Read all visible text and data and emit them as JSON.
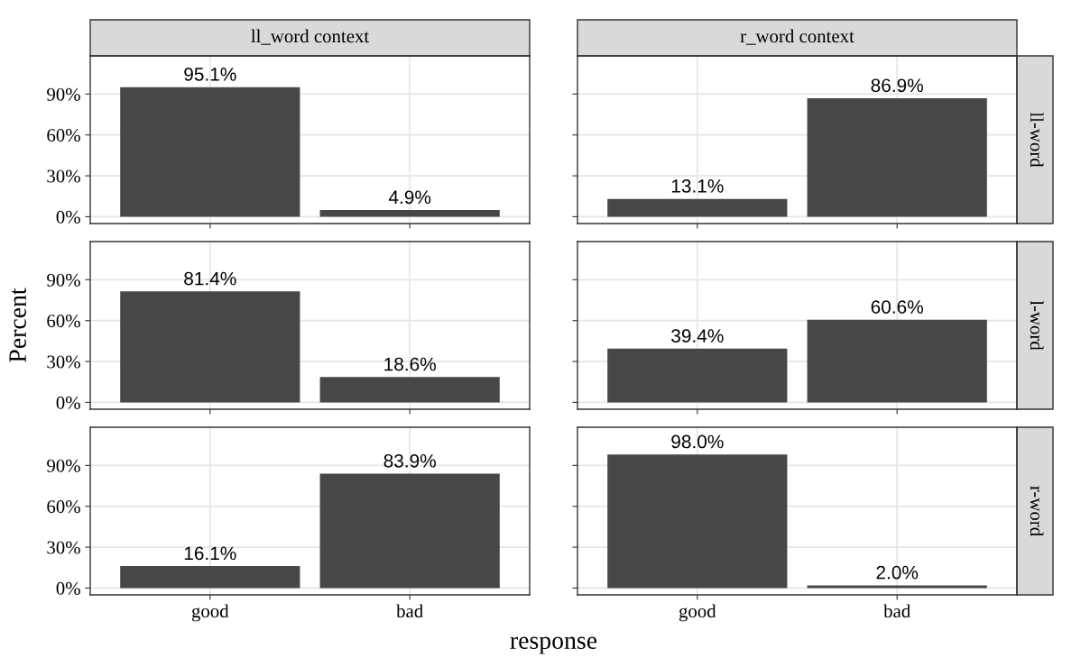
{
  "chart_data": [
    {
      "type": "bar",
      "title": "ll_word context",
      "categories": [
        null,
        null
      ],
      "values": [
        95.1,
        4.9
      ],
      "value_labels": [
        "95.1%",
        "4.9%"
      ],
      "color": "#474747",
      "ylim": [
        -5,
        118
      ],
      "yticks": [
        {
          "value": 0,
          "label": "0%"
        },
        {
          "value": 30,
          "label": "30%"
        },
        {
          "value": 60,
          "label": "60%"
        },
        {
          "value": 90,
          "label": "90%"
        }
      ],
      "grid": true
    },
    {
      "type": "bar",
      "title": "r_word context",
      "annotations": [
        "ll-word"
      ],
      "categories": [
        null,
        null
      ],
      "values": [
        13.1,
        86.9
      ],
      "value_labels": [
        "13.1%",
        "86.9%"
      ],
      "color": "#474747",
      "ylim": [
        -5,
        118
      ],
      "yticks": [
        {
          "value": 0,
          "label": null
        },
        {
          "value": 30,
          "label": null
        },
        {
          "value": 60,
          "label": null
        },
        {
          "value": 90,
          "label": null
        }
      ],
      "grid": true
    },
    {
      "type": "bar",
      "ylabel": "Percent",
      "categories": [
        null,
        null
      ],
      "values": [
        81.4,
        18.6
      ],
      "value_labels": [
        "81.4%",
        "18.6%"
      ],
      "color": "#474747",
      "ylim": [
        -5,
        118
      ],
      "yticks": [
        {
          "value": 0,
          "label": "0%"
        },
        {
          "value": 30,
          "label": "30%"
        },
        {
          "value": 60,
          "label": "60%"
        },
        {
          "value": 90,
          "label": "90%"
        }
      ],
      "grid": true
    },
    {
      "type": "bar",
      "annotations": [
        "l-word"
      ],
      "categories": [
        null,
        null
      ],
      "values": [
        39.4,
        60.6
      ],
      "value_labels": [
        "39.4%",
        "60.6%"
      ],
      "color": "#474747",
      "ylim": [
        -5,
        118
      ],
      "yticks": [
        {
          "value": 0,
          "label": null
        },
        {
          "value": 30,
          "label": null
        },
        {
          "value": 60,
          "label": null
        },
        {
          "value": 90,
          "label": null
        }
      ],
      "grid": true
    },
    {
      "type": "bar",
      "xlabel": "response",
      "categories": [
        "good",
        "bad"
      ],
      "values": [
        16.1,
        83.9
      ],
      "value_labels": [
        "16.1%",
        "83.9%"
      ],
      "color": "#474747",
      "ylim": [
        -5,
        118
      ],
      "yticks": [
        {
          "value": 0,
          "label": "0%"
        },
        {
          "value": 30,
          "label": "30%"
        },
        {
          "value": 60,
          "label": "60%"
        },
        {
          "value": 90,
          "label": "90%"
        }
      ],
      "grid": true
    },
    {
      "type": "bar",
      "annotations": [
        "r-word"
      ],
      "categories": [
        "good",
        "bad"
      ],
      "values": [
        98.0,
        2.0
      ],
      "value_labels": [
        "98.0%",
        "2.0%"
      ],
      "color": "#474747",
      "ylim": [
        -5,
        118
      ],
      "yticks": [
        {
          "value": 0,
          "label": null
        },
        {
          "value": 30,
          "label": null
        },
        {
          "value": 60,
          "label": null
        },
        {
          "value": 90,
          "label": null
        }
      ],
      "grid": true
    }
  ]
}
